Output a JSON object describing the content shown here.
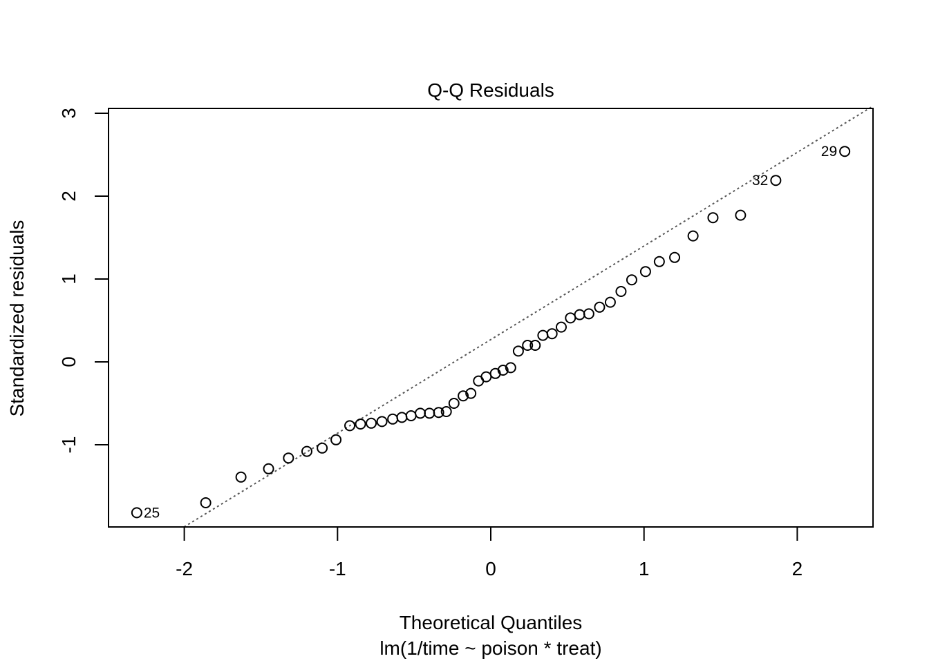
{
  "chart_data": {
    "type": "scatter",
    "title": "Q-Q Residuals",
    "xlabel": "Theoretical Quantiles",
    "subtitle": "lm(1/time ~ poison * treat)",
    "ylabel": "Standardized residuals",
    "xlim": [
      -2.5,
      2.5
    ],
    "ylim": [
      -2.0,
      3.05
    ],
    "xticks": [
      -2,
      -1,
      0,
      1,
      2
    ],
    "xtick_labels": [
      "-2",
      "-1",
      "0",
      "1",
      "2"
    ],
    "yticks": [
      -1,
      0,
      1,
      2,
      3
    ],
    "ytick_labels": [
      "-1",
      "0",
      "1",
      "2",
      "3"
    ],
    "grid": false,
    "reference_line": {
      "style": "dotted",
      "color": "#555555",
      "slope": 1.125,
      "intercept": 0.26
    },
    "point_style": {
      "marker": "open-circle",
      "color": "#000000"
    },
    "points": [
      {
        "x": -2.31,
        "y": -1.82,
        "label": "25"
      },
      {
        "x": -1.86,
        "y": -1.7
      },
      {
        "x": -1.63,
        "y": -1.39
      },
      {
        "x": -1.45,
        "y": -1.29
      },
      {
        "x": -1.32,
        "y": -1.16
      },
      {
        "x": -1.2,
        "y": -1.08
      },
      {
        "x": -1.1,
        "y": -1.04
      },
      {
        "x": -1.01,
        "y": -0.94
      },
      {
        "x": -0.92,
        "y": -0.77
      },
      {
        "x": -0.85,
        "y": -0.75
      },
      {
        "x": -0.78,
        "y": -0.74
      },
      {
        "x": -0.71,
        "y": -0.72
      },
      {
        "x": -0.64,
        "y": -0.69
      },
      {
        "x": -0.58,
        "y": -0.67
      },
      {
        "x": -0.52,
        "y": -0.65
      },
      {
        "x": -0.46,
        "y": -0.62
      },
      {
        "x": -0.4,
        "y": -0.62
      },
      {
        "x": -0.34,
        "y": -0.61
      },
      {
        "x": -0.29,
        "y": -0.6
      },
      {
        "x": -0.24,
        "y": -0.5
      },
      {
        "x": -0.18,
        "y": -0.41
      },
      {
        "x": -0.13,
        "y": -0.38
      },
      {
        "x": -0.08,
        "y": -0.23
      },
      {
        "x": -0.03,
        "y": -0.18
      },
      {
        "x": 0.03,
        "y": -0.14
      },
      {
        "x": 0.08,
        "y": -0.1
      },
      {
        "x": 0.13,
        "y": -0.07
      },
      {
        "x": 0.18,
        "y": 0.13
      },
      {
        "x": 0.24,
        "y": 0.2
      },
      {
        "x": 0.29,
        "y": 0.2
      },
      {
        "x": 0.34,
        "y": 0.32
      },
      {
        "x": 0.4,
        "y": 0.34
      },
      {
        "x": 0.46,
        "y": 0.42
      },
      {
        "x": 0.52,
        "y": 0.53
      },
      {
        "x": 0.58,
        "y": 0.57
      },
      {
        "x": 0.64,
        "y": 0.58
      },
      {
        "x": 0.71,
        "y": 0.66
      },
      {
        "x": 0.78,
        "y": 0.72
      },
      {
        "x": 0.85,
        "y": 0.85
      },
      {
        "x": 0.92,
        "y": 0.99
      },
      {
        "x": 1.01,
        "y": 1.09
      },
      {
        "x": 1.1,
        "y": 1.21
      },
      {
        "x": 1.2,
        "y": 1.26
      },
      {
        "x": 1.32,
        "y": 1.52
      },
      {
        "x": 1.45,
        "y": 1.74
      },
      {
        "x": 1.63,
        "y": 1.77
      },
      {
        "x": 1.86,
        "y": 2.19,
        "label": "32"
      },
      {
        "x": 2.31,
        "y": 2.54,
        "label": "29"
      }
    ]
  }
}
